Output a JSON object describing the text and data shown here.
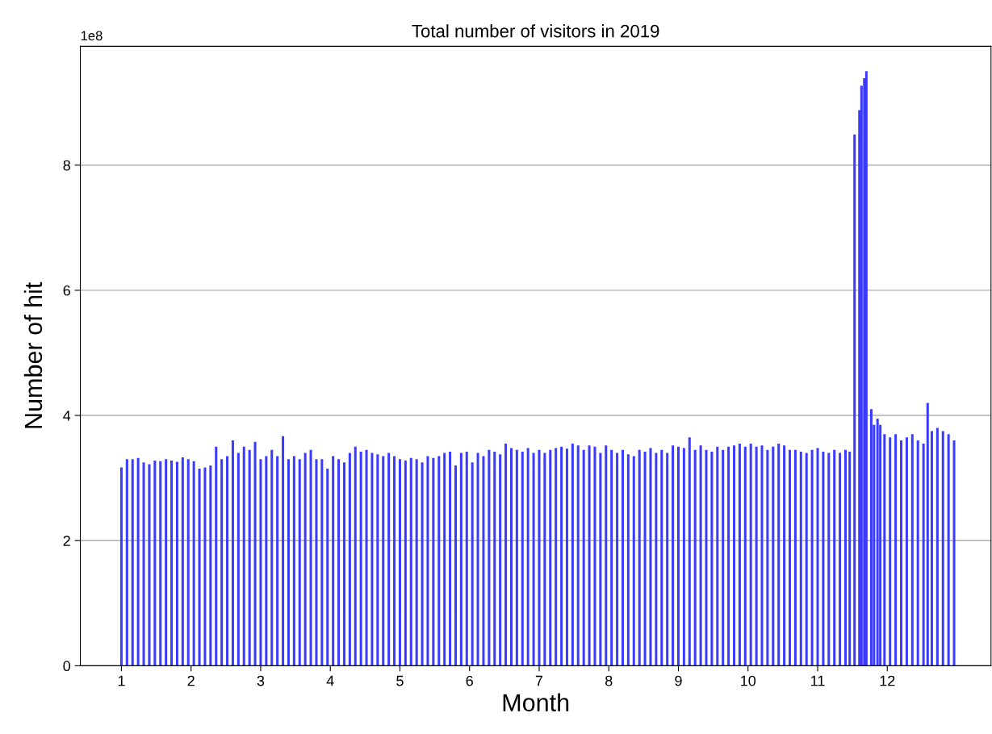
{
  "chart_data": {
    "type": "bar",
    "title": "Total number of visitors in 2019",
    "xlabel": "Month",
    "ylabel": "Number of hit",
    "annotations": [
      "1e8"
    ],
    "x": [
      1.0,
      1.08,
      1.16,
      1.24,
      1.32,
      1.4,
      1.48,
      1.56,
      1.64,
      1.72,
      1.8,
      1.88,
      1.96,
      2.04,
      2.12,
      2.2,
      2.28,
      2.36,
      2.44,
      2.52,
      2.6,
      2.68,
      2.76,
      2.84,
      2.92,
      3.0,
      3.08,
      3.16,
      3.24,
      3.32,
      3.4,
      3.48,
      3.56,
      3.64,
      3.72,
      3.8,
      3.88,
      3.96,
      4.04,
      4.12,
      4.2,
      4.28,
      4.36,
      4.44,
      4.52,
      4.6,
      4.68,
      4.76,
      4.84,
      4.92,
      5.0,
      5.08,
      5.16,
      5.24,
      5.32,
      5.4,
      5.48,
      5.56,
      5.64,
      5.72,
      5.8,
      5.88,
      5.96,
      6.04,
      6.12,
      6.2,
      6.28,
      6.36,
      6.44,
      6.52,
      6.6,
      6.68,
      6.76,
      6.84,
      6.92,
      7.0,
      7.08,
      7.16,
      7.24,
      7.32,
      7.4,
      7.48,
      7.56,
      7.64,
      7.72,
      7.8,
      7.88,
      7.96,
      8.04,
      8.12,
      8.2,
      8.28,
      8.36,
      8.44,
      8.52,
      8.6,
      8.68,
      8.76,
      8.84,
      8.92,
      9.0,
      9.08,
      9.16,
      9.24,
      9.32,
      9.4,
      9.48,
      9.56,
      9.64,
      9.72,
      9.8,
      9.88,
      9.96,
      10.04,
      10.12,
      10.2,
      10.28,
      10.36,
      10.44,
      10.52,
      10.6,
      10.68,
      10.76,
      10.84,
      10.92,
      11.0,
      11.08,
      11.16,
      11.24,
      11.32,
      11.4,
      11.46,
      11.53,
      11.6,
      11.63,
      11.67,
      11.7,
      11.77,
      11.81,
      11.86,
      11.9,
      11.96,
      12.04,
      12.12,
      12.2,
      12.28,
      12.36,
      12.44,
      12.52,
      12.58,
      12.64,
      12.72,
      12.8,
      12.88,
      12.96
    ],
    "series": [
      {
        "color": "#3b3bff",
        "values": [
          3.17,
          3.3,
          3.3,
          3.32,
          3.25,
          3.22,
          3.28,
          3.27,
          3.3,
          3.28,
          3.26,
          3.33,
          3.3,
          3.27,
          3.15,
          3.17,
          3.2,
          3.5,
          3.3,
          3.35,
          3.6,
          3.4,
          3.5,
          3.45,
          3.58,
          3.3,
          3.35,
          3.45,
          3.35,
          3.67,
          3.3,
          3.35,
          3.3,
          3.4,
          3.45,
          3.3,
          3.3,
          3.15,
          3.35,
          3.3,
          3.25,
          3.4,
          3.5,
          3.42,
          3.45,
          3.4,
          3.38,
          3.35,
          3.4,
          3.35,
          3.3,
          3.28,
          3.32,
          3.3,
          3.25,
          3.35,
          3.32,
          3.35,
          3.4,
          3.42,
          3.2,
          3.4,
          3.42,
          3.25,
          3.4,
          3.35,
          3.45,
          3.42,
          3.38,
          3.55,
          3.48,
          3.45,
          3.42,
          3.48,
          3.4,
          3.45,
          3.4,
          3.45,
          3.48,
          3.5,
          3.47,
          3.55,
          3.52,
          3.45,
          3.52,
          3.5,
          3.4,
          3.52,
          3.45,
          3.4,
          3.45,
          3.38,
          3.35,
          3.45,
          3.42,
          3.48,
          3.4,
          3.45,
          3.4,
          3.52,
          3.5,
          3.48,
          3.65,
          3.45,
          3.52,
          3.45,
          3.42,
          3.5,
          3.45,
          3.5,
          3.52,
          3.55,
          3.5,
          3.55,
          3.5,
          3.52,
          3.45,
          3.5,
          3.55,
          3.52,
          3.45,
          3.45,
          3.42,
          3.4,
          3.45,
          3.48,
          3.42,
          3.4,
          3.45,
          3.4,
          3.45,
          3.42,
          8.49,
          8.88,
          9.27,
          9.39,
          9.5,
          4.1,
          3.85,
          3.95,
          3.85,
          3.7,
          3.65,
          3.7,
          3.6,
          3.65,
          3.7,
          3.6,
          3.55,
          4.2,
          3.75,
          3.8,
          3.75,
          3.7,
          3.6
        ]
      }
    ],
    "xlim": [
      0.41,
      13.49
    ],
    "xticks": [
      1,
      2,
      3,
      4,
      5,
      6,
      7,
      8,
      9,
      10,
      11,
      12
    ],
    "ylim": [
      0,
      9.9
    ],
    "yticks": [
      0,
      2,
      4,
      6,
      8
    ],
    "grid": "y"
  }
}
